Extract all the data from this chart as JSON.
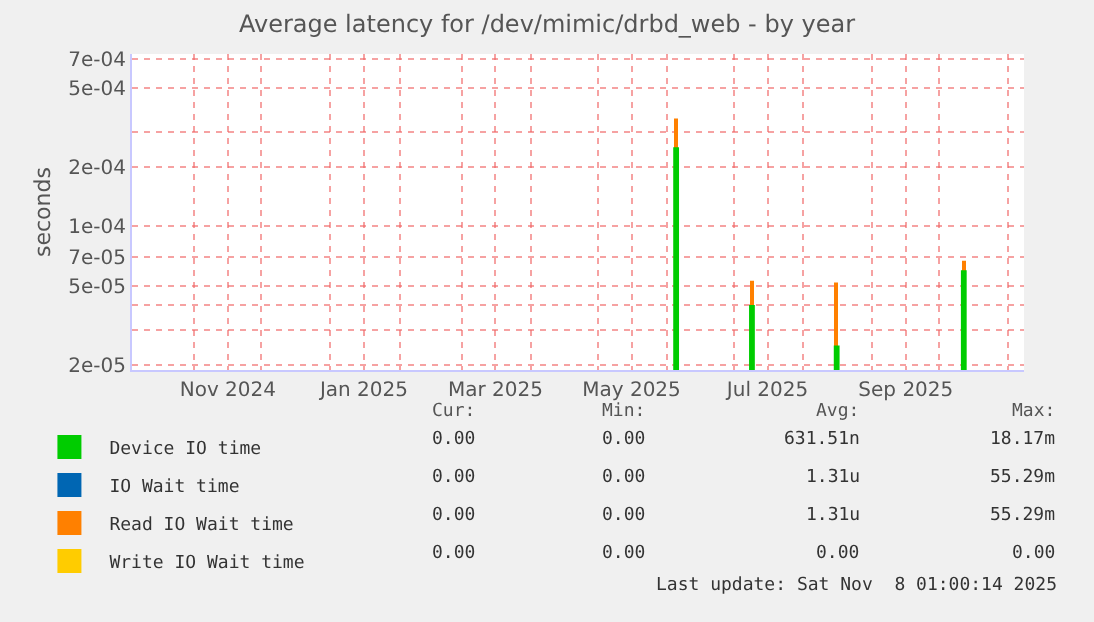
{
  "chart_data": {
    "type": "bar",
    "title": "Average latency for /dev/mimic/drbd_web - by year",
    "ylabel": "seconds",
    "xlim": [
      "2024-10-04",
      "2025-11-08"
    ],
    "xticks": [
      {
        "value": "2024-11-01",
        "label": null
      },
      {
        "value": "2024-11-16",
        "label": "Nov 2024"
      },
      {
        "value": "2024-12-01",
        "label": null
      },
      {
        "value": "2025-01-01",
        "label": null
      },
      {
        "value": "2025-01-16",
        "label": "Jan 2025"
      },
      {
        "value": "2025-02-01",
        "label": null
      },
      {
        "value": "2025-03-01",
        "label": null
      },
      {
        "value": "2025-03-16",
        "label": "Mar 2025"
      },
      {
        "value": "2025-04-01",
        "label": null
      },
      {
        "value": "2025-05-01",
        "label": null
      },
      {
        "value": "2025-05-16",
        "label": "May 2025"
      },
      {
        "value": "2025-06-01",
        "label": null
      },
      {
        "value": "2025-07-01",
        "label": null
      },
      {
        "value": "2025-07-16",
        "label": "Jul 2025"
      },
      {
        "value": "2025-08-01",
        "label": null
      },
      {
        "value": "2025-09-01",
        "label": null
      },
      {
        "value": "2025-09-16",
        "label": "Sep 2025"
      },
      {
        "value": "2025-10-01",
        "label": null
      },
      {
        "value": "2025-11-01",
        "label": null
      }
    ],
    "log": "y",
    "ylim": [
      1.88e-05,
      0.00074
    ],
    "yticks": [
      {
        "value": 2e-05,
        "label": "2e-05"
      },
      {
        "value": 3e-05,
        "label": null
      },
      {
        "value": 4e-05,
        "label": null
      },
      {
        "value": 5e-05,
        "label": "5e-05"
      },
      {
        "value": 7e-05,
        "label": "7e-05"
      },
      {
        "value": 0.0001,
        "label": "1e-04"
      },
      {
        "value": 0.0002,
        "label": "2e-04"
      },
      {
        "value": 0.0003,
        "label": null
      },
      {
        "value": 0.0005,
        "label": "5e-04"
      },
      {
        "value": 0.0007,
        "label": "7e-04"
      }
    ],
    "grid": true,
    "legend": "bottom",
    "series": [
      {
        "name": "Device IO time",
        "color": "#00cc00",
        "x": [
          "2025-06-05",
          "2025-07-09",
          "2025-08-16",
          "2025-10-12"
        ],
        "values": [
          0.00025,
          4e-05,
          2.5e-05,
          6e-05
        ]
      },
      {
        "name": "IO Wait time",
        "color": "#0066b3"
      },
      {
        "name": "Read IO Wait time",
        "color": "#ff8000",
        "x": [
          "2025-06-05",
          "2025-07-09",
          "2025-08-16",
          "2025-10-12"
        ],
        "values": [
          0.00035,
          5.3e-05,
          5.2e-05,
          6.7e-05
        ]
      },
      {
        "name": "Write IO Wait time",
        "color": "#ffcc00"
      }
    ],
    "annotations": [
      "Cur:",
      "Min:",
      "Avg:",
      "Max:",
      "0.00",
      "0.00",
      "631.51n",
      "18.17m",
      "0.00",
      "0.00",
      "1.31u",
      "55.29m",
      "0.00",
      "0.00",
      "1.31u",
      "55.29m",
      "0.00",
      "0.00",
      "0.00",
      "0.00",
      "Last update: Sat Nov  8 01:00:14 2025"
    ]
  }
}
